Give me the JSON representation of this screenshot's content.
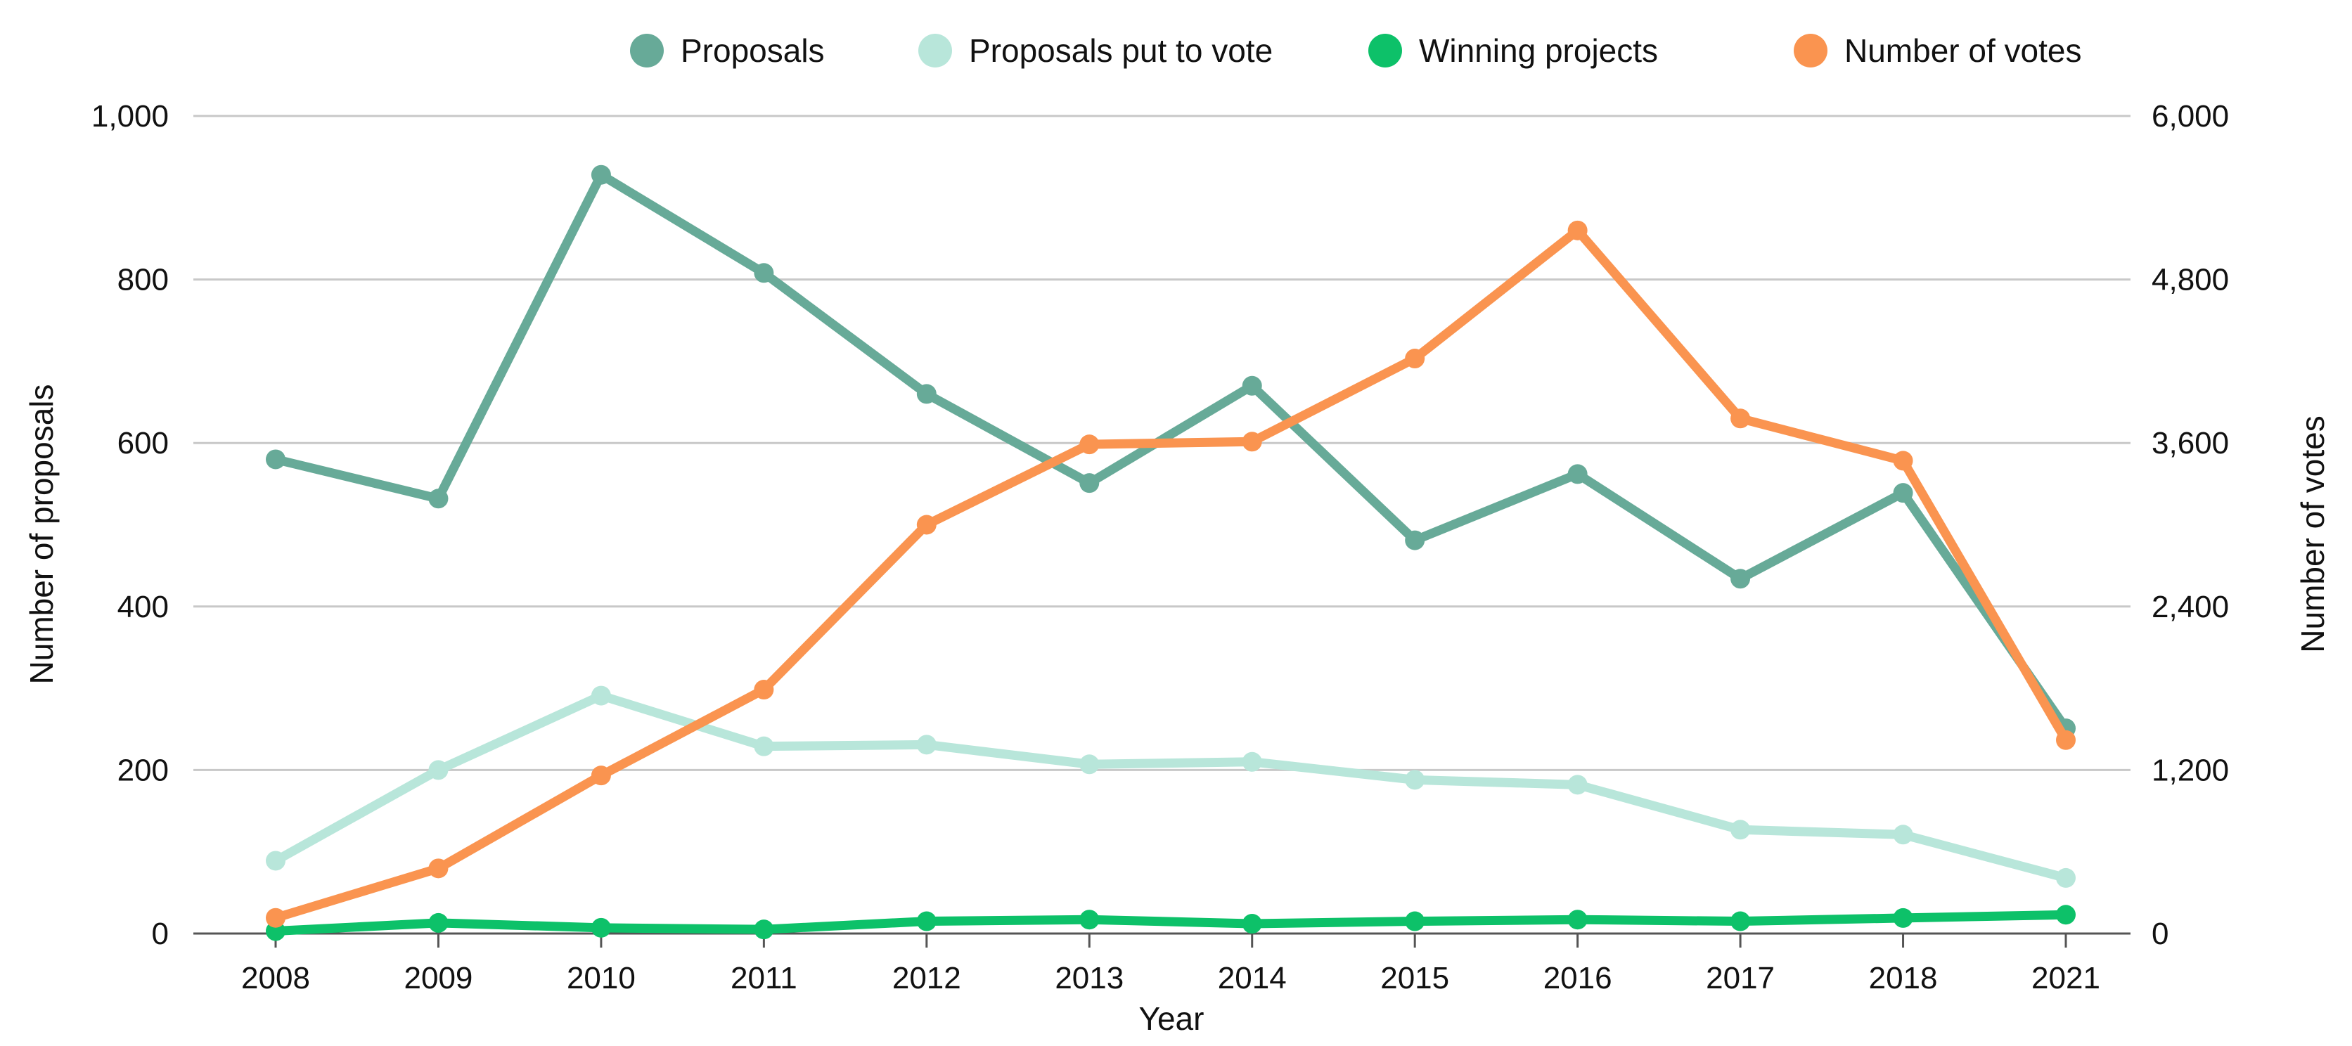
{
  "chart_data": {
    "type": "line",
    "categories": [
      "2008",
      "2009",
      "2010",
      "2011",
      "2012",
      "2013",
      "2014",
      "2015",
      "2016",
      "2017",
      "2018",
      "2021"
    ],
    "xlabel": "Year",
    "ylabel_left": "Number of proposals",
    "ylabel_right": "Number of votes",
    "ylim_left": [
      0,
      1000
    ],
    "ylim_right": [
      0,
      6000
    ],
    "yticks_left": [
      "0",
      "200",
      "400",
      "600",
      "800",
      "1,000"
    ],
    "yticks_right": [
      "0",
      "1,200",
      "2,400",
      "3,600",
      "4,800",
      "6,000"
    ],
    "grid": true,
    "legend_position": "top",
    "series": [
      {
        "name": "Proposals",
        "axis": "left",
        "color": "#67AA98",
        "values": [
          580,
          532,
          928,
          808,
          660,
          551,
          670,
          481,
          562,
          434,
          539,
          251
        ]
      },
      {
        "name": "Proposals put to vote",
        "axis": "left",
        "color": "#B8E6DA",
        "values": [
          89,
          200,
          291,
          229,
          231,
          207,
          210,
          188,
          182,
          127,
          121,
          68
        ]
      },
      {
        "name": "Winning projects",
        "axis": "left",
        "color": "#0DC169",
        "values": [
          3,
          13,
          7,
          5,
          15,
          17,
          12,
          15,
          17,
          15,
          19,
          23
        ]
      },
      {
        "name": "Number of votes",
        "axis": "right",
        "color": "#FA9450",
        "values": [
          115,
          478,
          1160,
          1790,
          3000,
          3590,
          3610,
          4220,
          5160,
          3780,
          3470,
          1420
        ]
      }
    ]
  }
}
